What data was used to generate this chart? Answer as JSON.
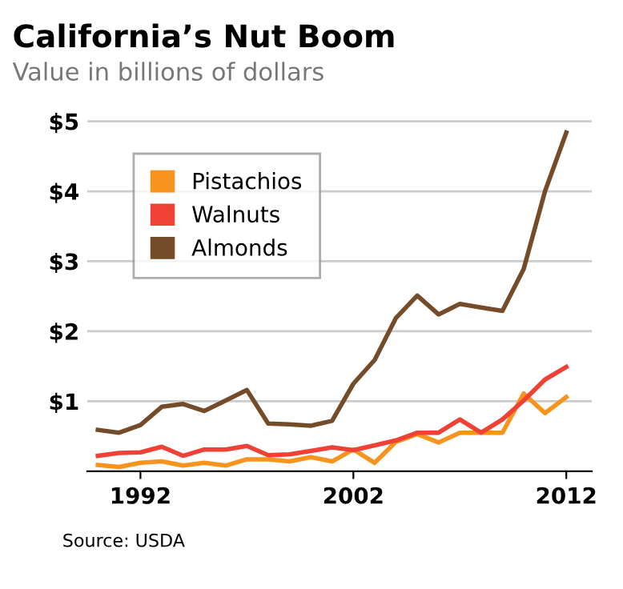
{
  "chart_data": {
    "type": "line",
    "title": "California’s Nut Boom",
    "subtitle": "Value in billions of dollars",
    "x": [
      1990,
      1991,
      1992,
      1993,
      1994,
      1995,
      1996,
      1997,
      1998,
      1999,
      2000,
      2001,
      2002,
      2003,
      2004,
      2005,
      2006,
      2007,
      2008,
      2009,
      2010,
      2011,
      2012
    ],
    "series": [
      {
        "name": "Pistachios",
        "color": "#f7941d",
        "values": [
          0.09,
          0.06,
          0.12,
          0.14,
          0.08,
          0.12,
          0.08,
          0.17,
          0.17,
          0.14,
          0.2,
          0.14,
          0.31,
          0.12,
          0.42,
          0.53,
          0.41,
          0.55,
          0.55,
          0.55,
          1.11,
          0.83,
          1.06
        ]
      },
      {
        "name": "Walnuts",
        "color": "#ef4136",
        "values": [
          0.22,
          0.26,
          0.27,
          0.35,
          0.22,
          0.31,
          0.31,
          0.36,
          0.23,
          0.24,
          0.29,
          0.34,
          0.3,
          0.37,
          0.44,
          0.55,
          0.55,
          0.74,
          0.55,
          0.74,
          1.01,
          1.31,
          1.49
        ]
      },
      {
        "name": "Almonds",
        "color": "#754c29",
        "values": [
          0.59,
          0.55,
          0.66,
          0.92,
          0.96,
          0.86,
          1.01,
          1.16,
          0.68,
          0.67,
          0.65,
          0.72,
          1.25,
          1.59,
          2.19,
          2.51,
          2.24,
          2.39,
          2.34,
          2.29,
          2.89,
          4.0,
          4.84
        ]
      }
    ],
    "xlim": [
      1989.5,
      2013.2
    ],
    "xticks": [
      1992,
      2002,
      2012
    ],
    "ylim": [
      0,
      5.05
    ],
    "yticks": [
      {
        "value": 1,
        "label": "$1"
      },
      {
        "value": 2,
        "label": "$2"
      },
      {
        "value": 3,
        "label": "$3"
      },
      {
        "value": 4,
        "label": "$4"
      },
      {
        "value": 5,
        "label": "$5"
      }
    ],
    "grid": "y",
    "legend": "top left",
    "marker": "none",
    "line_style": "solid",
    "annotations": [
      "Source: USDA"
    ]
  }
}
